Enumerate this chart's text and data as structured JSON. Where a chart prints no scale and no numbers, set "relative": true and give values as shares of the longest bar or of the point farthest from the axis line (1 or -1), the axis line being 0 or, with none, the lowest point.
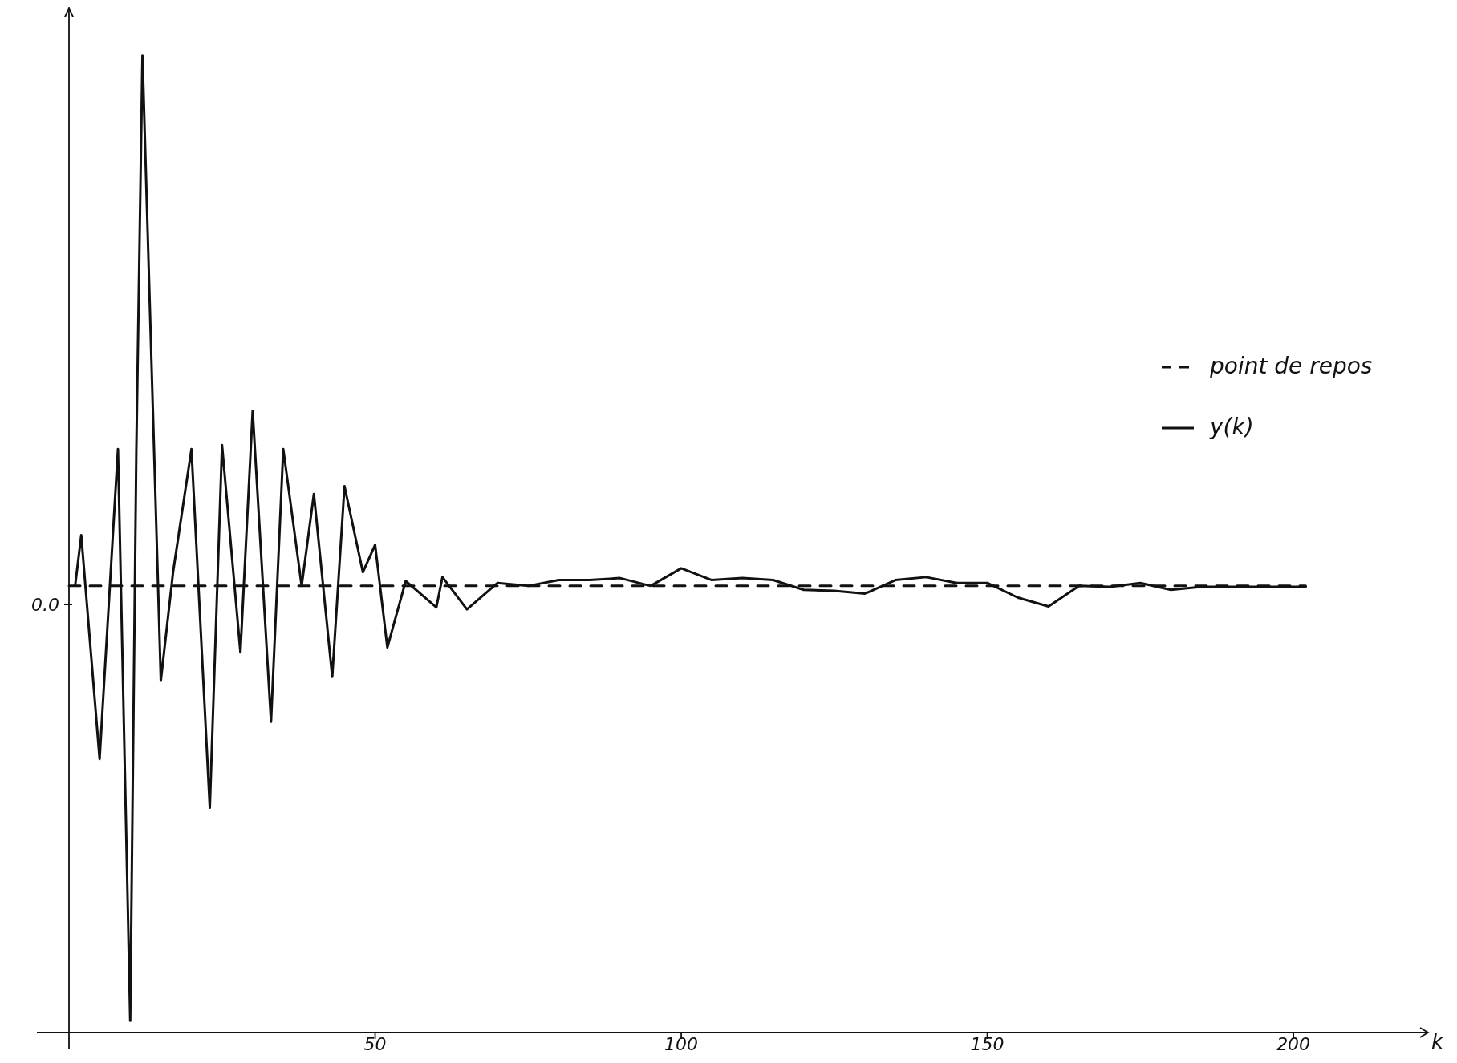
{
  "chart_data": {
    "type": "line",
    "relative": true,
    "xlabel": "k",
    "xlim": [
      0,
      222
    ],
    "xticks": [
      50,
      100,
      150,
      200
    ],
    "annotations": [
      "0.0"
    ],
    "legend": "right",
    "series": [
      {
        "name": "point de repos",
        "color": "#111111",
        "line_style": "dashed",
        "x": [
          0,
          202
        ],
        "values": [
          0.457,
          0.457
        ]
      },
      {
        "name": "y(k)",
        "color": "#111111",
        "line_style": "solid",
        "x": [
          1,
          2,
          5,
          8,
          10,
          11,
          12,
          15,
          17,
          20,
          23,
          25,
          28,
          30,
          33,
          35,
          38,
          40,
          43,
          45,
          48,
          50,
          52,
          55,
          60,
          61,
          65,
          70,
          75,
          80,
          85,
          90,
          95,
          100,
          105,
          110,
          115,
          120,
          125,
          130,
          135,
          140,
          145,
          150,
          155,
          160,
          165,
          170,
          175,
          180,
          185,
          202
        ],
        "values": [
          0.457,
          0.509,
          0.28,
          0.597,
          0.012,
          0.597,
          1.0,
          0.36,
          0.471,
          0.597,
          0.23,
          0.601,
          0.389,
          0.636,
          0.318,
          0.597,
          0.457,
          0.551,
          0.364,
          0.559,
          0.471,
          0.499,
          0.394,
          0.462,
          0.435,
          0.466,
          0.433,
          0.46,
          0.457,
          0.463,
          0.463,
          0.465,
          0.457,
          0.475,
          0.463,
          0.465,
          0.463,
          0.453,
          0.452,
          0.449,
          0.463,
          0.466,
          0.46,
          0.46,
          0.445,
          0.436,
          0.457,
          0.456,
          0.46,
          0.453,
          0.456,
          0.456
        ]
      }
    ]
  }
}
